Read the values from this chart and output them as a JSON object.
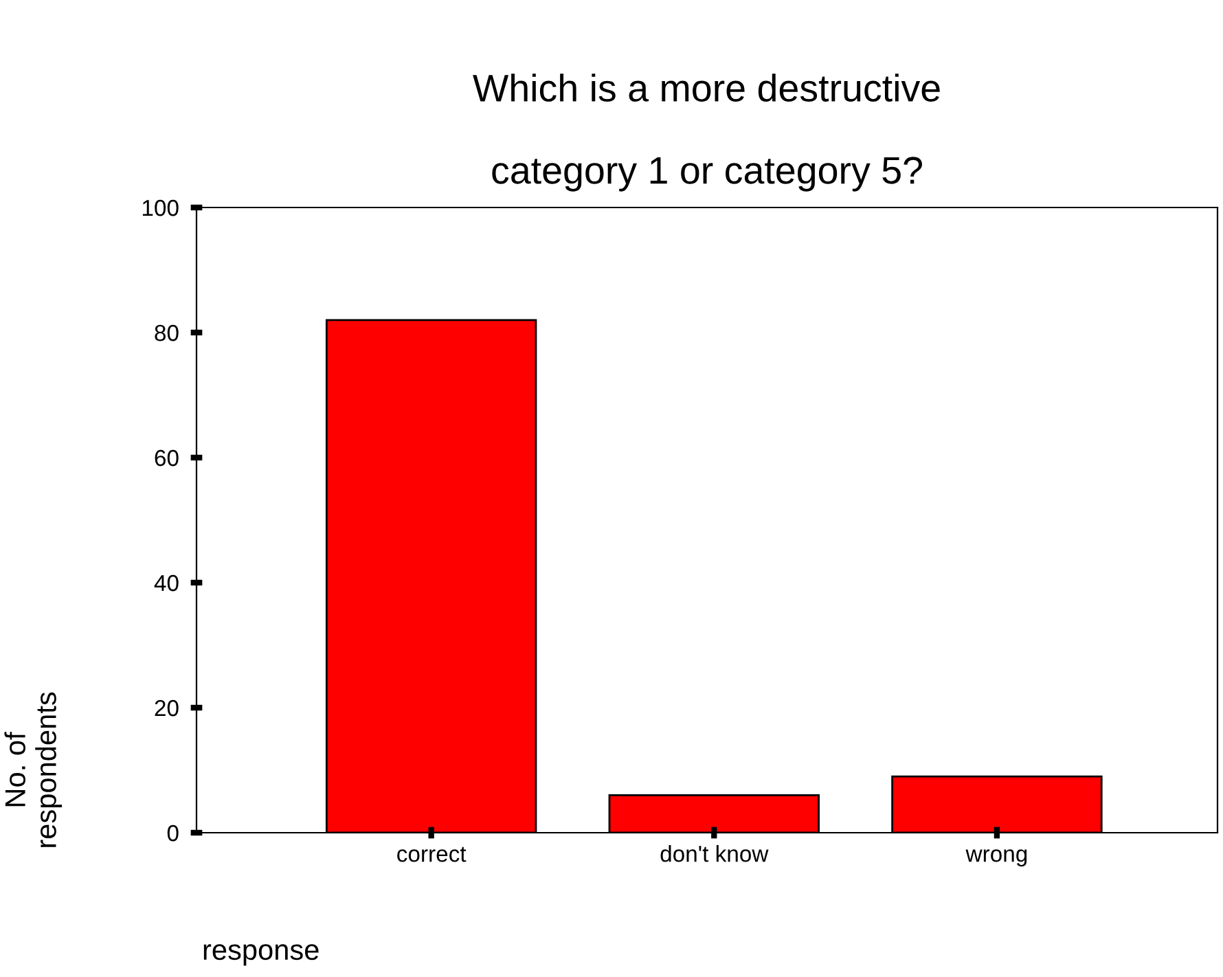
{
  "chart_data": {
    "type": "bar",
    "title": "Which is a more destructive\n\ncategory 1 or category 5?",
    "xlabel": "response",
    "ylabel": "No. of\nrespondents",
    "categories": [
      "correct",
      "don't know",
      "wrong"
    ],
    "values": [
      82,
      6,
      9
    ],
    "color": "#ff0000",
    "ylim": [
      0,
      100
    ],
    "yticks": [
      0,
      20,
      40,
      60,
      80,
      100
    ],
    "grid": false,
    "legend": false
  }
}
